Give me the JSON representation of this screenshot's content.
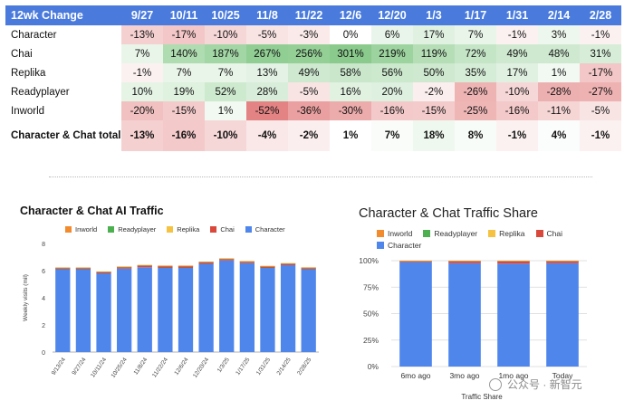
{
  "table": {
    "corner": "12wk Change",
    "columns": [
      "9/27",
      "10/11",
      "10/25",
      "11/8",
      "11/22",
      "12/6",
      "12/20",
      "1/3",
      "1/17",
      "1/31",
      "2/14",
      "2/28"
    ],
    "rows": [
      {
        "label": "Character",
        "cells": [
          "-13%",
          "-17%",
          "-10%",
          "-5%",
          "-3%",
          "0%",
          "6%",
          "17%",
          "7%",
          "-1%",
          "3%",
          "-1%"
        ],
        "values": [
          -13,
          -17,
          -10,
          -5,
          -3,
          0,
          6,
          17,
          7,
          -1,
          3,
          -1
        ]
      },
      {
        "label": "Chai",
        "cells": [
          "7%",
          "140%",
          "187%",
          "267%",
          "256%",
          "301%",
          "219%",
          "119%",
          "72%",
          "49%",
          "48%",
          "31%"
        ],
        "values": [
          7,
          140,
          187,
          267,
          256,
          301,
          219,
          119,
          72,
          49,
          48,
          31
        ]
      },
      {
        "label": "Replika",
        "cells": [
          "-1%",
          "7%",
          "7%",
          "13%",
          "49%",
          "58%",
          "56%",
          "50%",
          "35%",
          "17%",
          "1%",
          "-17%"
        ],
        "values": [
          -1,
          7,
          7,
          13,
          49,
          58,
          56,
          50,
          35,
          17,
          1,
          -17
        ]
      },
      {
        "label": "Readyplayer",
        "cells": [
          "10%",
          "19%",
          "52%",
          "28%",
          "-5%",
          "16%",
          "20%",
          "-2%",
          "-26%",
          "-10%",
          "-28%",
          "-27%"
        ],
        "values": [
          10,
          19,
          52,
          28,
          -5,
          16,
          20,
          -2,
          -26,
          -10,
          -28,
          -27
        ]
      },
      {
        "label": "Inworld",
        "cells": [
          "-20%",
          "-15%",
          "1%",
          "-52%",
          "-36%",
          "-30%",
          "-16%",
          "-15%",
          "-25%",
          "-16%",
          "-11%",
          "-5%"
        ],
        "values": [
          -20,
          -15,
          1,
          -52,
          -36,
          -30,
          -16,
          -15,
          -25,
          -16,
          -11,
          -5
        ]
      },
      {
        "label": "Character & Chat total",
        "cells": [
          "-13%",
          "-16%",
          "-10%",
          "-4%",
          "-2%",
          "1%",
          "7%",
          "18%",
          "8%",
          "-1%",
          "4%",
          "-1%"
        ],
        "values": [
          -13,
          -16,
          -10,
          -4,
          -2,
          1,
          7,
          18,
          8,
          -1,
          4,
          -1
        ]
      }
    ]
  },
  "colors": {
    "header": "#4a7bdc",
    "inworld": "#f28a2e",
    "readyplayer": "#4caf50",
    "replika": "#f5c242",
    "chai": "#d9483b",
    "character": "#4f86ec"
  },
  "chart_data": [
    {
      "type": "bar",
      "stacked": true,
      "title": "Character & Chat AI Traffic",
      "ylabel": "Weekly visits (mil)",
      "xlabel": "",
      "ylim": [
        0,
        8
      ],
      "yticks": [
        0,
        2,
        4,
        6,
        8
      ],
      "categories": [
        "9/13/24",
        "9/27/24",
        "10/11/24",
        "10/25/24",
        "11/8/24",
        "11/22/24",
        "12/6/24",
        "12/20/24",
        "1/3/25",
        "1/17/25",
        "1/31/25",
        "2/14/25",
        "2/28/25"
      ],
      "legend": [
        "Inworld",
        "Readyplayer",
        "Replika",
        "Chai",
        "Character"
      ],
      "series": [
        {
          "name": "Character",
          "values": [
            6.1,
            6.1,
            5.8,
            6.15,
            6.25,
            6.2,
            6.2,
            6.5,
            6.75,
            6.55,
            6.2,
            6.4,
            6.1
          ]
        },
        {
          "name": "Chai",
          "values": [
            0.08,
            0.08,
            0.09,
            0.1,
            0.12,
            0.12,
            0.12,
            0.11,
            0.1,
            0.1,
            0.1,
            0.1,
            0.09
          ]
        },
        {
          "name": "Replika",
          "values": [
            0.02,
            0.02,
            0.02,
            0.02,
            0.02,
            0.02,
            0.02,
            0.02,
            0.02,
            0.02,
            0.02,
            0.02,
            0.02
          ]
        },
        {
          "name": "Readyplayer",
          "values": [
            0.01,
            0.01,
            0.01,
            0.01,
            0.01,
            0.01,
            0.01,
            0.01,
            0.01,
            0.01,
            0.01,
            0.01,
            0.01
          ]
        },
        {
          "name": "Inworld",
          "values": [
            0.02,
            0.02,
            0.02,
            0.02,
            0.02,
            0.02,
            0.02,
            0.02,
            0.02,
            0.02,
            0.02,
            0.02,
            0.02
          ]
        }
      ]
    },
    {
      "type": "bar",
      "stacked": true,
      "title": "Character & Chat Traffic Share",
      "xlabel": "Traffic Share",
      "ylabel": "",
      "ylim": [
        0,
        100
      ],
      "yticks": [
        "0%",
        "25%",
        "50%",
        "75%",
        "100%"
      ],
      "categories": [
        "6mo ago",
        "3mo ago",
        "1mo ago",
        "Today"
      ],
      "legend": [
        "Inworld",
        "Readyplayer",
        "Replika",
        "Chai",
        "Character"
      ],
      "series": [
        {
          "name": "Character",
          "values": [
            98.6,
            97.6,
            97.2,
            97.6
          ]
        },
        {
          "name": "Chai",
          "values": [
            1.0,
            1.6,
            2.0,
            1.8
          ]
        },
        {
          "name": "Replika",
          "values": [
            0.2,
            0.5,
            0.5,
            0.4
          ]
        },
        {
          "name": "Readyplayer",
          "values": [
            0.1,
            0.2,
            0.2,
            0.1
          ]
        },
        {
          "name": "Inworld",
          "values": [
            0.1,
            0.1,
            0.1,
            0.1
          ]
        }
      ]
    }
  ],
  "watermark": {
    "text": "公众号 · 新智元"
  }
}
